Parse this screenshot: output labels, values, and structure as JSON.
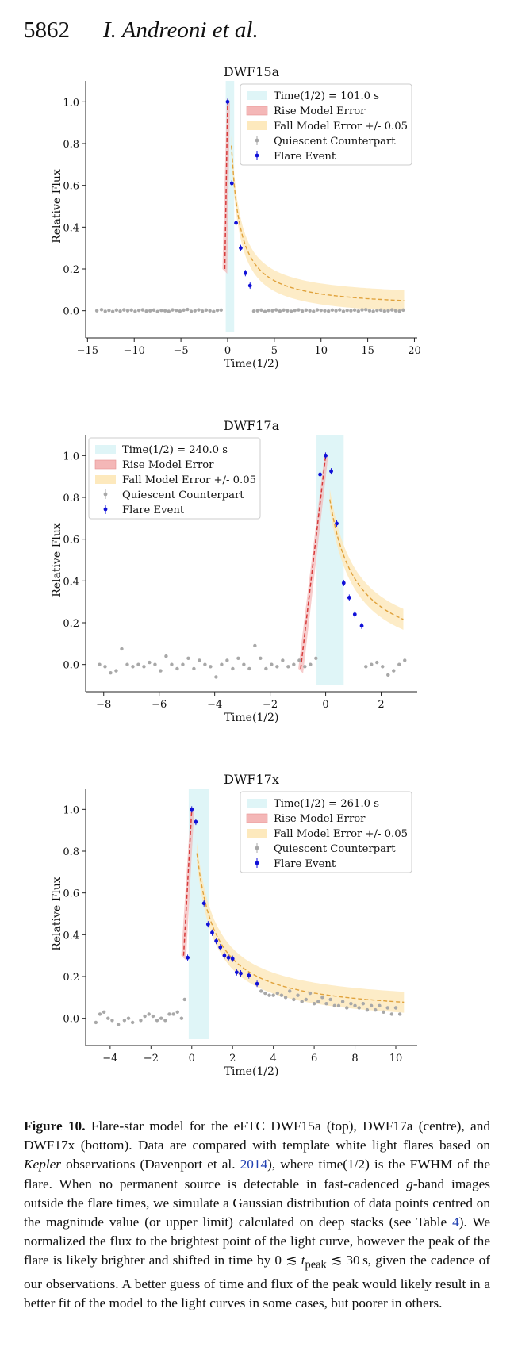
{
  "header": {
    "page_number": "5862",
    "authors": "I. Andreoni et al."
  },
  "legend_labels": {
    "rise": "Rise Model Error",
    "fall": "Fall Model Error +/- 0.05",
    "quiescent": "Quiescent Counterpart",
    "flare": "Flare Event"
  },
  "colors": {
    "shade": "#dff5f7",
    "rise": "#d63a3a",
    "fall": "#e0a23c",
    "fallband": "#fde9bd",
    "quiescent": "#a8a8a8",
    "flare": "#1010d8"
  },
  "chart_data": [
    {
      "type": "scatter",
      "title": "DWF15a",
      "xlabel": "Time(1/2)",
      "ylabel": "Relative Flux",
      "xlim": [
        -15.2,
        20.3
      ],
      "ylim": [
        -0.1,
        1.1
      ],
      "xticks": [
        -15,
        -10,
        -5,
        0,
        5,
        10,
        15,
        20
      ],
      "yticks": [
        0.0,
        0.2,
        0.4,
        0.6,
        0.8,
        1.0
      ],
      "legend_placement": "upper-right",
      "legend_time": "Time(1/2) = 101.0 s",
      "shade": [
        -0.2,
        0.7
      ],
      "rise_model": {
        "t_start": -0.3,
        "f_start": 0.2
      },
      "fall_model": {
        "t_peak": 0.4,
        "t_end": 18.9
      },
      "flare_points": {
        "x": [
          0.0,
          0.45,
          0.9,
          1.4,
          1.9,
          2.4
        ],
        "y": [
          1.0,
          0.61,
          0.42,
          0.3,
          0.18,
          0.12
        ]
      },
      "quiescent_points": {
        "x": [
          -14.0,
          -13.5,
          -13.1,
          -12.7,
          -12.3,
          -11.9,
          -11.5,
          -11.1,
          -10.7,
          -10.3,
          -9.9,
          -9.5,
          -9.1,
          -8.7,
          -8.3,
          -7.9,
          -7.5,
          -7.1,
          -6.7,
          -6.3,
          -5.9,
          -5.5,
          -5.1,
          -4.7,
          -4.3,
          -3.9,
          -3.5,
          -3.1,
          -2.7,
          -2.3,
          -1.9,
          -1.5,
          -1.1,
          -0.7,
          2.8,
          3.2,
          3.6,
          4.0,
          4.4,
          4.8,
          5.2,
          5.6,
          6.0,
          6.4,
          6.8,
          7.2,
          7.6,
          8.0,
          8.4,
          8.8,
          9.2,
          9.6,
          10.0,
          10.4,
          10.8,
          11.2,
          11.6,
          12.0,
          12.4,
          12.8,
          13.2,
          13.6,
          14.0,
          14.4,
          14.8,
          15.2,
          15.6,
          16.0,
          16.4,
          16.8,
          17.2,
          17.6,
          18.0,
          18.4,
          18.8
        ],
        "y": [
          0.0,
          0.005,
          -0.003,
          0.002,
          -0.004,
          0.003,
          -0.002,
          0.004,
          0.0,
          0.003,
          -0.003,
          0.002,
          0.004,
          -0.002,
          0.0,
          0.003,
          -0.004,
          0.002,
          0.0,
          -0.003,
          0.004,
          0.002,
          -0.002,
          0.003,
          0.006,
          -0.003,
          0.0,
          0.004,
          -0.002,
          0.003,
          0.0,
          -0.004,
          0.002,
          0.003,
          -0.002,
          0.0,
          0.003,
          -0.004,
          0.002,
          0.0,
          0.004,
          -0.002,
          0.003,
          0.0,
          -0.003,
          0.002,
          0.004,
          -0.002,
          0.003,
          0.0,
          -0.003,
          0.004,
          0.002,
          0.0,
          -0.002,
          0.003,
          0.0,
          0.004,
          -0.003,
          0.002,
          0.0,
          0.003,
          -0.002,
          0.004,
          0.005,
          0.0,
          -0.003,
          0.002,
          0.003,
          -0.002,
          0.0,
          0.004,
          0.0,
          -0.002,
          0.003
        ]
      }
    },
    {
      "type": "scatter",
      "title": "DWF17a",
      "xlabel": "Time(1/2)",
      "ylabel": "Relative Flux",
      "xlim": [
        -8.65,
        3.3
      ],
      "ylim": [
        -0.1,
        1.1
      ],
      "xticks": [
        -8,
        -6,
        -4,
        -2,
        0,
        2
      ],
      "yticks": [
        0.0,
        0.2,
        0.4,
        0.6,
        0.8,
        1.0
      ],
      "legend_placement": "upper-left",
      "legend_time": "Time(1/2) = 240.0 s",
      "shade": [
        -0.33,
        0.65
      ],
      "rise_model": {
        "t_start": -0.9,
        "f_start": -0.02
      },
      "fall_model": {
        "t_peak": 0.15,
        "t_end": 2.8
      },
      "flare_points": {
        "x": [
          -0.2,
          0.0,
          0.2,
          0.4,
          0.65,
          0.85,
          1.05,
          1.3
        ],
        "y": [
          0.91,
          1.0,
          0.925,
          0.675,
          0.39,
          0.32,
          0.24,
          0.185
        ]
      },
      "quiescent_points": {
        "x": [
          -8.15,
          -7.95,
          -7.75,
          -7.55,
          -7.35,
          -7.15,
          -6.95,
          -6.75,
          -6.55,
          -6.35,
          -6.15,
          -5.95,
          -5.75,
          -5.55,
          -5.35,
          -5.15,
          -4.95,
          -4.75,
          -4.55,
          -4.35,
          -4.15,
          -3.95,
          -3.75,
          -3.55,
          -3.35,
          -3.15,
          -2.95,
          -2.75,
          -2.55,
          -2.35,
          -2.15,
          -1.95,
          -1.75,
          -1.55,
          -1.35,
          -1.15,
          -0.95,
          -0.75,
          -0.55,
          -0.35,
          1.45,
          1.65,
          1.85,
          2.05,
          2.25,
          2.45,
          2.65,
          2.85
        ],
        "y": [
          0.0,
          -0.01,
          -0.04,
          -0.03,
          0.075,
          0.0,
          -0.01,
          0.0,
          -0.01,
          0.01,
          0.0,
          -0.03,
          0.04,
          0.0,
          -0.02,
          0.0,
          0.03,
          -0.02,
          0.02,
          0.0,
          -0.01,
          -0.06,
          0.0,
          0.02,
          -0.02,
          0.03,
          0.0,
          -0.02,
          0.09,
          0.03,
          -0.02,
          0.0,
          -0.01,
          0.02,
          -0.01,
          0.0,
          0.02,
          -0.01,
          0.0,
          0.03,
          -0.01,
          0.0,
          0.01,
          -0.01,
          -0.05,
          -0.03,
          0.0,
          0.02
        ]
      }
    },
    {
      "type": "scatter",
      "title": "DWF17x",
      "xlabel": "Time(1/2)",
      "ylabel": "Relative Flux",
      "xlim": [
        -5.2,
        11.05
      ],
      "ylim": [
        -0.1,
        1.1
      ],
      "xticks": [
        -4,
        -2,
        0,
        2,
        4,
        6,
        8,
        10
      ],
      "yticks": [
        0.0,
        0.2,
        0.4,
        0.6,
        0.8,
        1.0
      ],
      "legend_placement": "upper-right",
      "legend_time": "Time(1/2) = 261.0 s",
      "shade": [
        -0.15,
        0.85
      ],
      "rise_model": {
        "t_start": -0.4,
        "f_start": 0.3
      },
      "fall_model": {
        "t_peak": 0.25,
        "t_end": 10.4
      },
      "flare_points": {
        "x": [
          -0.2,
          0.0,
          0.2,
          0.6,
          0.8,
          1.0,
          1.2,
          1.4,
          1.6,
          1.8,
          2.0,
          2.2,
          2.4,
          2.8,
          3.2
        ],
        "y": [
          0.29,
          1.0,
          0.94,
          0.55,
          0.45,
          0.41,
          0.37,
          0.34,
          0.3,
          0.29,
          0.285,
          0.22,
          0.215,
          0.205,
          0.165
        ]
      },
      "quiescent_points": {
        "x": [
          -4.7,
          -4.5,
          -4.3,
          -4.1,
          -3.9,
          -3.6,
          -3.3,
          -3.1,
          -2.9,
          -2.5,
          -2.3,
          -2.1,
          -1.9,
          -1.7,
          -1.5,
          -1.3,
          -1.1,
          -0.9,
          -0.7,
          -0.5,
          -0.35,
          3.4,
          3.6,
          3.8,
          4.0,
          4.2,
          4.4,
          4.6,
          4.8,
          5.0,
          5.2,
          5.4,
          5.6,
          5.8,
          6.0,
          6.2,
          6.4,
          6.6,
          6.8,
          7.0,
          7.2,
          7.4,
          7.6,
          7.8,
          8.0,
          8.2,
          8.4,
          8.6,
          8.8,
          9.0,
          9.2,
          9.4,
          9.6,
          9.8,
          10.0,
          10.2
        ],
        "y": [
          -0.02,
          0.02,
          0.03,
          0.0,
          -0.01,
          -0.03,
          -0.01,
          0.0,
          -0.02,
          -0.01,
          0.01,
          0.02,
          0.01,
          -0.01,
          0.0,
          -0.01,
          0.02,
          0.02,
          0.03,
          0.0,
          0.09,
          0.13,
          0.12,
          0.11,
          0.11,
          0.12,
          0.11,
          0.1,
          0.13,
          0.09,
          0.11,
          0.08,
          0.09,
          0.12,
          0.07,
          0.08,
          0.1,
          0.07,
          0.09,
          0.06,
          0.06,
          0.08,
          0.05,
          0.07,
          0.06,
          0.05,
          0.07,
          0.04,
          0.06,
          0.04,
          0.06,
          0.03,
          0.05,
          0.02,
          0.05,
          0.02
        ]
      }
    }
  ],
  "caption": {
    "label": "Figure 10.",
    "t1": "  Flare-star model for the eFTC DWF15a (top), DWF17a (centre), and DWF17x (bottom). Data are compared with template white light flares based on ",
    "kepler": "Kepler",
    "t2": " observations (Davenport et al. ",
    "ref_year": "2014",
    "t3": "), where time(1/2) is the FWHM of the flare. When no permanent source is detectable in fast-cadenced ",
    "g": "g",
    "t4": "-band images outside the flare times, we simulate a Gaussian distribution of data points centred on the magnitude value (or upper limit) calculated on deep stacks (see Table ",
    "ref_table": "4",
    "t5": "). We normalized the flux to the brightest point of the light curve, however the peak of the flare is likely brighter and shifted in time by 0 ≲ ",
    "tpeak_t": "t",
    "tpeak_sub": "peak",
    "t6": " ≲ 30 s, given the cadence of our observations. A better guess of time and flux of the peak would likely result in a better fit of the model to the light curves in some cases, but poorer in others."
  }
}
